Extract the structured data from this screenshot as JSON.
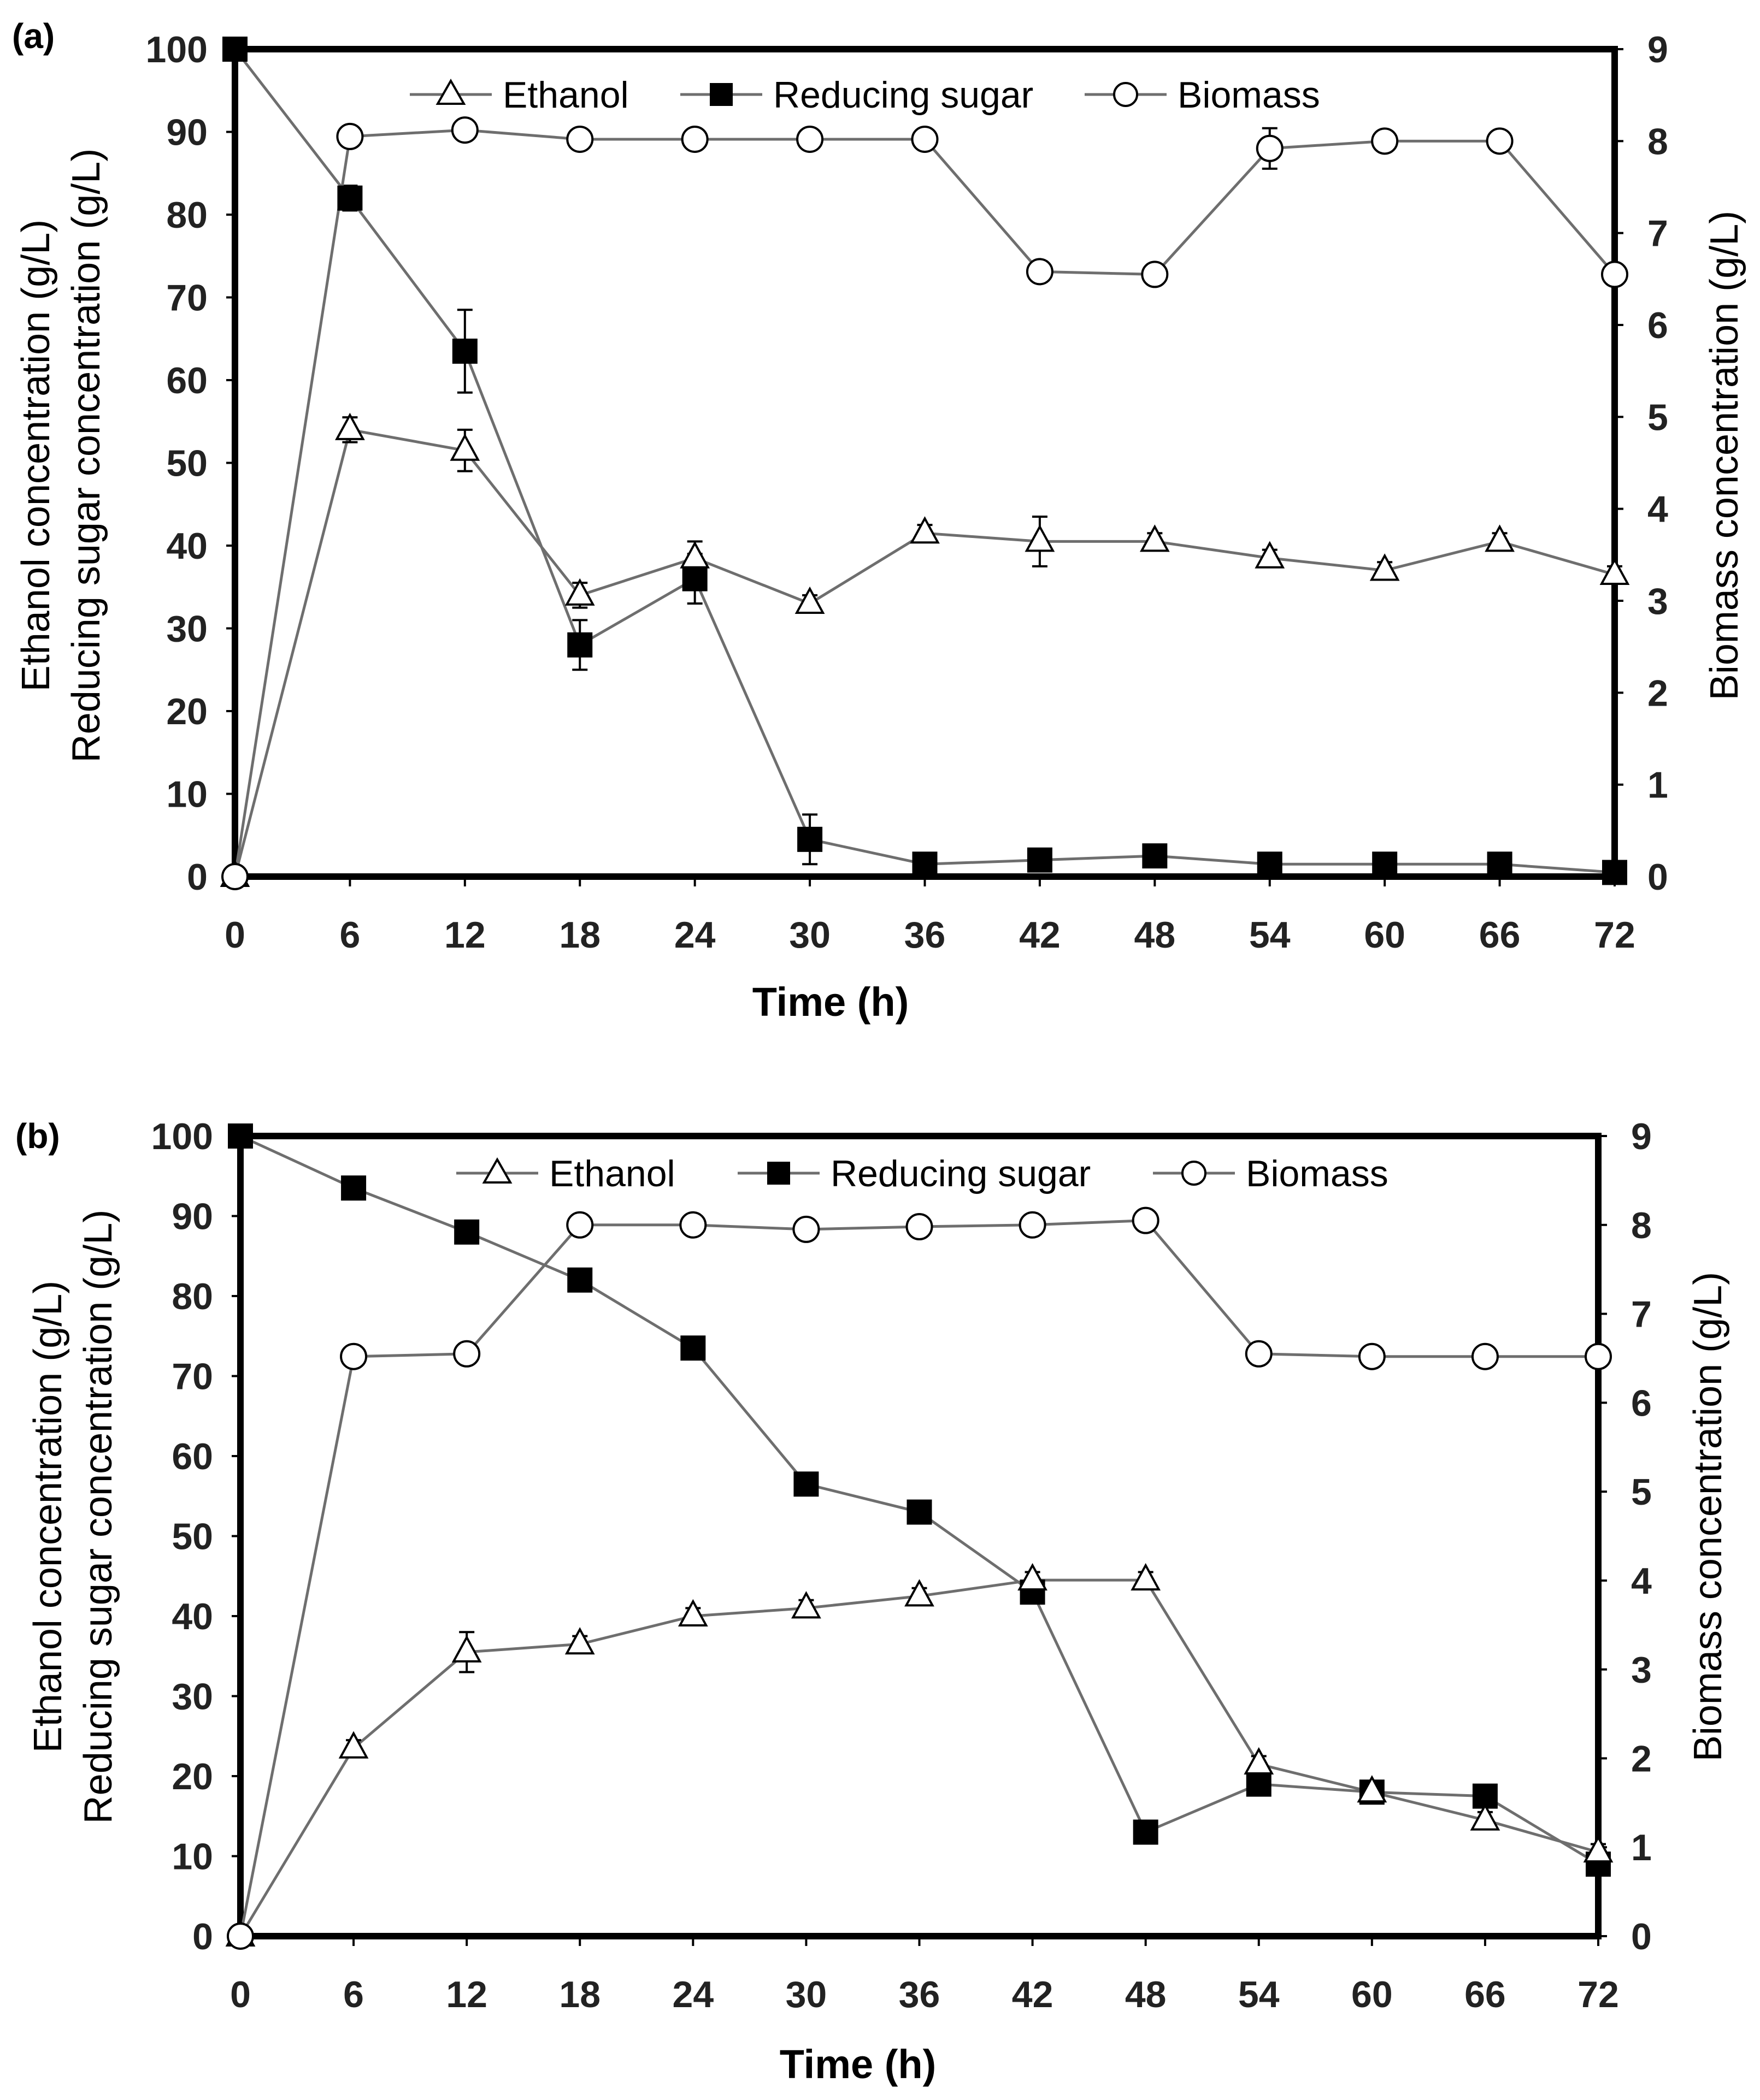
{
  "chart_data": [
    {
      "panel_label": "(a)",
      "type": "line",
      "x": [
        0,
        6,
        12,
        18,
        24,
        30,
        36,
        42,
        48,
        54,
        60,
        66,
        72
      ],
      "xlabel": "Time (h)",
      "ylabel_left_1": "Ethanol concentration (g/L)",
      "ylabel_left_2": "Reducing sugar concentration (g/L)",
      "ylabel_right": "Biomass concentration (g/L)",
      "xlim": [
        0,
        72
      ],
      "ylim": [
        0,
        100
      ],
      "y2lim": [
        0,
        9
      ],
      "xticks": [
        "0",
        "6",
        "12",
        "18",
        "24",
        "30",
        "36",
        "42",
        "48",
        "54",
        "60",
        "66",
        "72"
      ],
      "yticks": [
        "0",
        "10",
        "20",
        "30",
        "40",
        "50",
        "60",
        "70",
        "80",
        "90",
        "100"
      ],
      "y2ticks": [
        "0",
        "1",
        "2",
        "3",
        "4",
        "5",
        "6",
        "7",
        "8",
        "9"
      ],
      "legend_position": "top",
      "series": [
        {
          "name": "Ethanol",
          "axis": "left",
          "marker": "triangle-open",
          "values": [
            0,
            54,
            51.5,
            34,
            38.5,
            33,
            41.5,
            40.5,
            40.5,
            38.5,
            37,
            40.5,
            36.5
          ],
          "errors": [
            0,
            1.5,
            2.5,
            1.5,
            2,
            1,
            1,
            3,
            1,
            1,
            1,
            1,
            1
          ]
        },
        {
          "name": "Reducing sugar",
          "axis": "left",
          "marker": "square-filled",
          "values": [
            100,
            82,
            63.5,
            28,
            36,
            4.5,
            1.5,
            2,
            2.5,
            1.5,
            1.5,
            1.5,
            0.5
          ],
          "errors": [
            0,
            1.5,
            5,
            3,
            3,
            3,
            0.5,
            0.5,
            0.5,
            0.5,
            0.5,
            0.5,
            0.2
          ]
        },
        {
          "name": "Biomass",
          "axis": "right",
          "marker": "circle-open",
          "values": [
            0,
            8.05,
            8.12,
            8.02,
            8.02,
            8.02,
            8.02,
            6.58,
            6.55,
            7.92,
            8.0,
            8.0,
            6.55
          ],
          "errors": [
            0,
            0,
            0,
            0,
            0,
            0,
            0,
            0,
            0,
            0.22,
            0,
            0,
            0
          ]
        }
      ]
    },
    {
      "panel_label": "(b)",
      "type": "line",
      "x": [
        0,
        6,
        12,
        18,
        24,
        30,
        36,
        42,
        48,
        54,
        60,
        66,
        72
      ],
      "xlabel": "Time (h)",
      "ylabel_left_1": "Ethanol concentration (g/L)",
      "ylabel_left_2": "Reducing sugar concentration (g/L)",
      "ylabel_right": "Biomass concentration (g/L)",
      "xlim": [
        0,
        72
      ],
      "ylim": [
        0,
        100
      ],
      "y2lim": [
        0,
        9
      ],
      "xticks": [
        "0",
        "6",
        "12",
        "18",
        "24",
        "30",
        "36",
        "42",
        "48",
        "54",
        "60",
        "66",
        "72"
      ],
      "yticks": [
        "0",
        "10",
        "20",
        "30",
        "40",
        "50",
        "60",
        "70",
        "80",
        "90",
        "100"
      ],
      "y2ticks": [
        "0",
        "1",
        "2",
        "3",
        "4",
        "5",
        "6",
        "7",
        "8",
        "9"
      ],
      "legend_position": "top",
      "series": [
        {
          "name": "Ethanol",
          "axis": "left",
          "marker": "triangle-open",
          "values": [
            0,
            23.5,
            35.5,
            36.5,
            40,
            41,
            42.5,
            44.5,
            44.5,
            21.5,
            18,
            14.5,
            10.5
          ],
          "errors": [
            0,
            1,
            2.5,
            1,
            1,
            1,
            1,
            1,
            1,
            1,
            1,
            1,
            1
          ]
        },
        {
          "name": "Reducing sugar",
          "axis": "left",
          "marker": "square-filled",
          "values": [
            100,
            93.5,
            88,
            82,
            73.5,
            56.5,
            53,
            43,
            13,
            19,
            18,
            17.5,
            9
          ],
          "errors": [
            0,
            0.5,
            0.5,
            1,
            0.5,
            0.5,
            0.5,
            0.5,
            0.5,
            0.5,
            0.5,
            0.5,
            0.5
          ]
        },
        {
          "name": "Biomass",
          "axis": "right",
          "marker": "circle-open",
          "values": [
            0,
            6.52,
            6.55,
            8.0,
            8.0,
            7.95,
            7.98,
            8.0,
            8.05,
            6.55,
            6.52,
            6.52,
            6.52
          ],
          "errors": [
            0,
            0,
            0,
            0,
            0,
            0,
            0,
            0,
            0,
            0,
            0,
            0,
            0
          ]
        }
      ]
    }
  ],
  "colors": {
    "axis": "#000000",
    "line": "#6e6e6e",
    "marker_fill": "#000000",
    "marker_open": "#ffffff",
    "text": "#222222"
  }
}
